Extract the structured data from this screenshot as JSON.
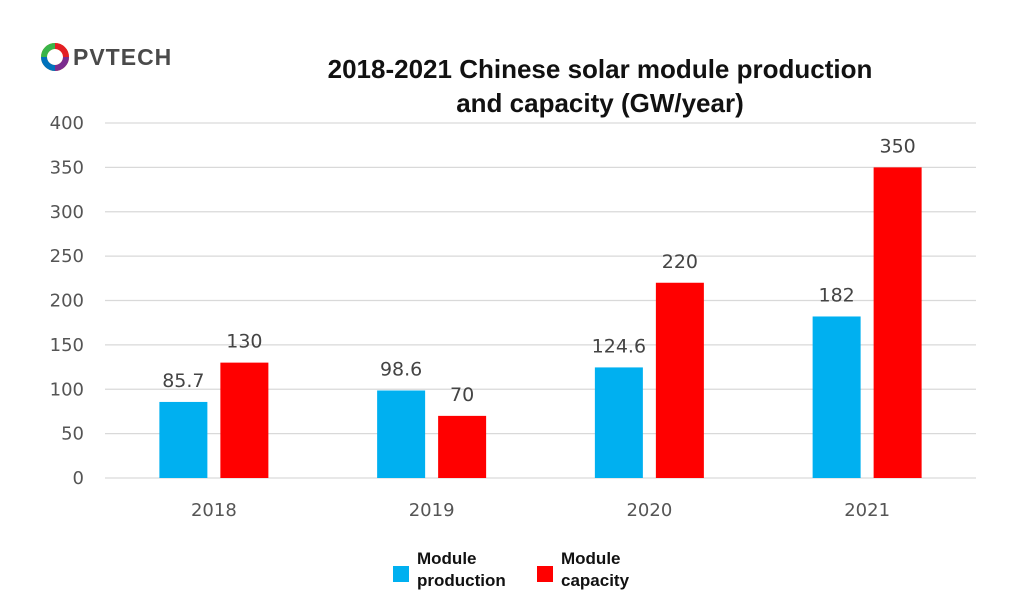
{
  "logo": {
    "text": "PVTECH"
  },
  "chart_data": {
    "type": "bar",
    "title": "2018-2021 Chinese solar module production and capacity (GW/year)",
    "categories": [
      "2018",
      "2019",
      "2020",
      "2021"
    ],
    "series": [
      {
        "name": "Module production",
        "values": [
          85.7,
          98.6,
          124.6,
          182
        ],
        "labels": [
          "85.7",
          "98.6",
          "124.6",
          "182"
        ],
        "color": "#00b0f0"
      },
      {
        "name": "Module capacity",
        "values": [
          130,
          70,
          220,
          350
        ],
        "labels": [
          "130",
          "70",
          "220",
          "350"
        ],
        "color": "#ff0000"
      }
    ],
    "ylim": [
      0,
      400
    ],
    "yticks": [
      0,
      50,
      100,
      150,
      200,
      250,
      300,
      350,
      400
    ],
    "grid": true,
    "legend": "bottom"
  }
}
